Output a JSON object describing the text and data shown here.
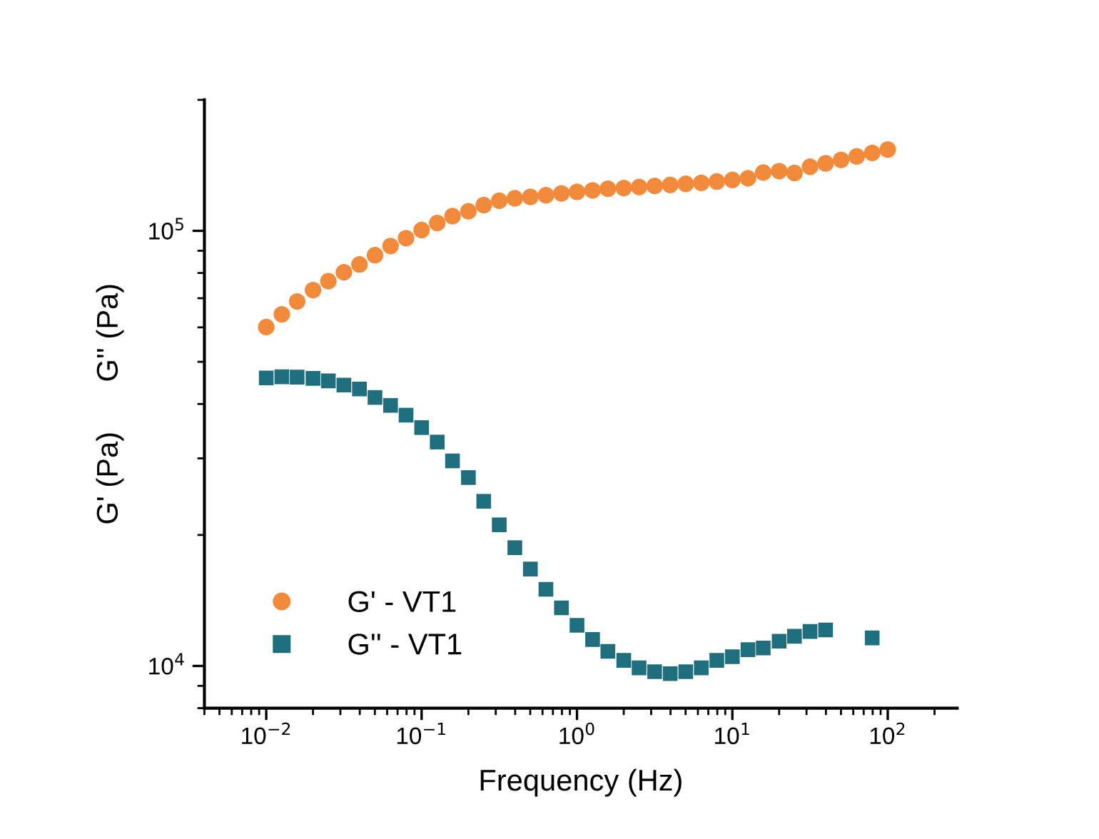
{
  "chart_data": {
    "type": "scatter",
    "xlabel": "Frequency (Hz)",
    "ylabel": "G' (Pa)      G'' (Pa)",
    "log": "xy",
    "grid": false,
    "legend": "bottom left",
    "x": [
      0.01,
      0.0126,
      0.0158,
      0.02,
      0.0251,
      0.0316,
      0.0398,
      0.0501,
      0.0631,
      0.0794,
      0.1,
      0.126,
      0.158,
      0.2,
      0.251,
      0.316,
      0.398,
      0.501,
      0.631,
      0.794,
      1,
      1.26,
      1.58,
      2,
      2.51,
      3.16,
      3.98,
      5.01,
      6.31,
      7.94,
      10,
      12.6,
      15.8,
      20,
      25.1,
      31.6,
      39.8,
      50.1,
      63.1,
      79.4,
      100
    ],
    "series": [
      {
        "name": "G' - VT1",
        "color": "#f28a3c",
        "marker": "circle",
        "values": [
          60100,
          64300,
          68800,
          73100,
          76600,
          80300,
          83700,
          87900,
          92300,
          96200,
          100400,
          104200,
          108100,
          110900,
          114600,
          117300,
          118800,
          119700,
          120700,
          121900,
          122900,
          123900,
          124900,
          125400,
          126100,
          126800,
          127500,
          128200,
          128900,
          129800,
          130900,
          132100,
          136100,
          137200,
          135800,
          140400,
          142900,
          145600,
          148300,
          151000,
          153800
        ]
      },
      {
        "name": "G'' - VT1",
        "color": "#1f6e7e",
        "marker": "square",
        "values": [
          45900,
          46200,
          46100,
          45800,
          45200,
          44200,
          43300,
          41400,
          39700,
          37700,
          35300,
          32700,
          29600,
          27100,
          23900,
          21100,
          18700,
          16700,
          15000,
          13600,
          12400,
          11500,
          10800,
          10300,
          9900,
          9700,
          9600,
          9700,
          9900,
          10300,
          10500,
          10900,
          11000,
          11400,
          11700,
          12000,
          12100,
          null,
          null,
          11600,
          null
        ]
      }
    ],
    "xlim": [
      0.004,
      280
    ],
    "ylim": [
      8000,
      200000
    ],
    "xticks": [
      {
        "value": 0.01,
        "label": "10$^{−2}$"
      },
      {
        "value": 0.1,
        "label": "10$^{−1}$"
      },
      {
        "value": 1,
        "label": "10$^{0}$"
      },
      {
        "value": 10,
        "label": "10$^{1}$"
      },
      {
        "value": 100,
        "label": "10$^{2}$"
      }
    ],
    "yticks": [
      {
        "value": 10000,
        "label": "10$^{4}$"
      },
      {
        "value": 100000,
        "label": "10$^{5}$"
      }
    ]
  }
}
